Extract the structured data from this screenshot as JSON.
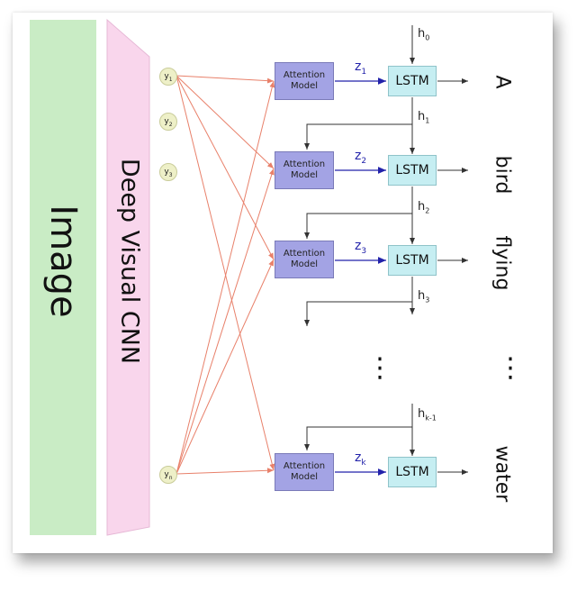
{
  "image_label": "Image",
  "cnn_label": "Deep Visual CNN",
  "features": [
    {
      "base": "y",
      "sub": "1"
    },
    {
      "base": "y",
      "sub": "2"
    },
    {
      "base": "y",
      "sub": "3"
    },
    {
      "base": "y",
      "sub": "n"
    }
  ],
  "attention_label_line1": "Attention",
  "attention_label_line2": "Model",
  "lstm_label": "LSTM",
  "z_labels": [
    {
      "base": "z",
      "sub": "1"
    },
    {
      "base": "z",
      "sub": "2"
    },
    {
      "base": "z",
      "sub": "3"
    },
    {
      "base": "z",
      "sub": "k"
    }
  ],
  "h_labels": [
    {
      "base": "h",
      "sub": "0"
    },
    {
      "base": "h",
      "sub": "1"
    },
    {
      "base": "h",
      "sub": "2"
    },
    {
      "base": "h",
      "sub": "3"
    },
    {
      "base": "h",
      "sub": "k-1"
    }
  ],
  "words": [
    "A",
    "bird",
    "flying",
    "water"
  ],
  "ellipsis": "⋮",
  "colors": {
    "image_bar": "#c9ecc5",
    "cnn_trapezoid": "#f9d6ec",
    "feature_node": "#eef0c8",
    "attention_box": "#a3a3e4",
    "lstm_box": "#c6eef2",
    "attention_wires": "#e8806a",
    "z_arrows": "#2222aa"
  }
}
